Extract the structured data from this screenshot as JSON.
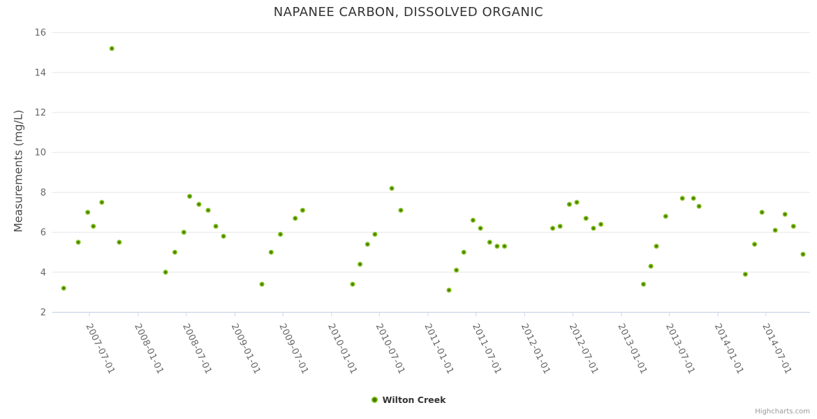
{
  "header": {
    "title": "NAPANEE CARBON, DISSOLVED ORGANIC"
  },
  "legend": {
    "items": [
      {
        "label": "Wilton Creek"
      }
    ]
  },
  "credits": {
    "label": "Highcharts.com"
  },
  "colors": {
    "marker_outer": "#7fc112",
    "marker_inner": "#497610",
    "gridline": "#e6e6e6",
    "axis_line": "#ccd6eb",
    "title_text": "#333333",
    "axis_label_text": "#666666",
    "credits_text": "#999999",
    "background": "#ffffff"
  },
  "chart_data": {
    "type": "scatter",
    "title": "NAPANEE CARBON, DISSOLVED ORGANIC",
    "xlabel": "",
    "ylabel": "Measurements (mg/L)",
    "ylim": [
      2,
      16
    ],
    "grid": true,
    "legend_position": "bottom-center",
    "y_ticks": [
      2,
      4,
      6,
      8,
      10,
      12,
      14,
      16
    ],
    "x_tick_labels": [
      "2007-07-01",
      "2008-01-01",
      "2008-07-01",
      "2009-01-01",
      "2009-07-01",
      "2010-01-01",
      "2010-07-01",
      "2011-01-01",
      "2011-07-01",
      "2012-01-01",
      "2012-07-01",
      "2013-01-01",
      "2013-07-01",
      "2014-01-01",
      "2014-07-01"
    ],
    "series": [
      {
        "name": "Wilton Creek",
        "color": "#7fc112",
        "points": [
          {
            "date": "2007-03-26",
            "value": 3.2
          },
          {
            "date": "2007-05-20",
            "value": 5.5
          },
          {
            "date": "2007-06-25",
            "value": 7.0
          },
          {
            "date": "2007-07-16",
            "value": 6.3
          },
          {
            "date": "2007-08-17",
            "value": 7.5
          },
          {
            "date": "2007-09-24",
            "value": 15.2
          },
          {
            "date": "2007-10-22",
            "value": 5.5
          },
          {
            "date": "2008-04-14",
            "value": 4.0
          },
          {
            "date": "2008-05-19",
            "value": 5.0
          },
          {
            "date": "2008-06-22",
            "value": 6.0
          },
          {
            "date": "2008-07-14",
            "value": 7.8
          },
          {
            "date": "2008-08-18",
            "value": 7.4
          },
          {
            "date": "2008-09-22",
            "value": 7.1
          },
          {
            "date": "2008-10-21",
            "value": 6.3
          },
          {
            "date": "2008-11-19",
            "value": 5.8
          },
          {
            "date": "2009-04-13",
            "value": 3.4
          },
          {
            "date": "2009-05-18",
            "value": 5.0
          },
          {
            "date": "2009-06-22",
            "value": 5.9
          },
          {
            "date": "2009-08-17",
            "value": 6.7
          },
          {
            "date": "2009-09-14",
            "value": 7.1
          },
          {
            "date": "2010-03-22",
            "value": 3.4
          },
          {
            "date": "2010-04-19",
            "value": 4.4
          },
          {
            "date": "2010-05-17",
            "value": 5.4
          },
          {
            "date": "2010-06-14",
            "value": 5.9
          },
          {
            "date": "2010-08-17",
            "value": 8.2
          },
          {
            "date": "2010-09-20",
            "value": 7.1
          },
          {
            "date": "2011-03-21",
            "value": 3.1
          },
          {
            "date": "2011-04-18",
            "value": 4.1
          },
          {
            "date": "2011-05-16",
            "value": 5.0
          },
          {
            "date": "2011-06-20",
            "value": 6.6
          },
          {
            "date": "2011-07-18",
            "value": 6.2
          },
          {
            "date": "2011-08-22",
            "value": 5.5
          },
          {
            "date": "2011-09-19",
            "value": 5.3
          },
          {
            "date": "2011-10-17",
            "value": 5.3
          },
          {
            "date": "2012-04-16",
            "value": 6.2
          },
          {
            "date": "2012-05-14",
            "value": 6.3
          },
          {
            "date": "2012-06-18",
            "value": 7.4
          },
          {
            "date": "2012-07-16",
            "value": 7.5
          },
          {
            "date": "2012-08-20",
            "value": 6.7
          },
          {
            "date": "2012-09-17",
            "value": 6.2
          },
          {
            "date": "2012-10-15",
            "value": 6.4
          },
          {
            "date": "2013-03-25",
            "value": 3.4
          },
          {
            "date": "2013-04-22",
            "value": 4.3
          },
          {
            "date": "2013-05-13",
            "value": 5.3
          },
          {
            "date": "2013-06-17",
            "value": 6.8
          },
          {
            "date": "2013-08-19",
            "value": 7.7
          },
          {
            "date": "2013-09-30",
            "value": 7.7
          },
          {
            "date": "2013-10-21",
            "value": 7.3
          },
          {
            "date": "2014-04-14",
            "value": 3.9
          },
          {
            "date": "2014-05-19",
            "value": 5.4
          },
          {
            "date": "2014-06-16",
            "value": 7.0
          },
          {
            "date": "2014-08-05",
            "value": 6.1
          },
          {
            "date": "2014-09-11",
            "value": 6.9
          },
          {
            "date": "2014-10-13",
            "value": 6.3
          },
          {
            "date": "2014-11-18",
            "value": 4.9
          }
        ]
      }
    ]
  }
}
